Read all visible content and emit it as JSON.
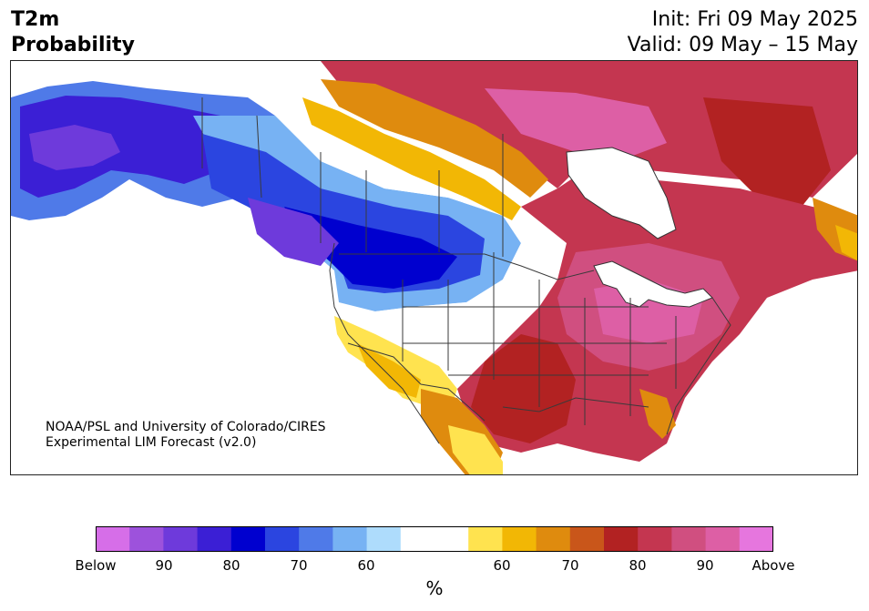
{
  "header": {
    "title_line1": "T2m",
    "title_line2": "Probability",
    "init": "Init: Fri 09 May 2025",
    "valid": "Valid: 09 May – 15 May"
  },
  "credit": {
    "line1": "NOAA/PSL and University of Colorado/CIRES",
    "line2": "Experimental LIM Forecast (v2.0)"
  },
  "colorbar": {
    "unit": "%",
    "colors": [
      "#d66ee8",
      "#9d52dc",
      "#6e3adb",
      "#3b1fd5",
      "#0000cf",
      "#2b45e0",
      "#4f7ae8",
      "#77b2f3",
      "#aedcfc",
      "#ffffff",
      "#ffffff",
      "#ffe34f",
      "#f2b705",
      "#df8b0e",
      "#c9561a",
      "#b22222",
      "#c43650",
      "#d04f80",
      "#dd5fa5",
      "#e676de"
    ],
    "labels": [
      "Below",
      "90",
      "80",
      "70",
      "60",
      "60",
      "70",
      "80",
      "90",
      "Above"
    ]
  },
  "colors": {
    "below_deep": "#3b1fd5",
    "below_mid": "#4f7ae8",
    "near_normal": "#ffffff",
    "above_mid": "#f2b705",
    "above_deep": "#c43650"
  }
}
